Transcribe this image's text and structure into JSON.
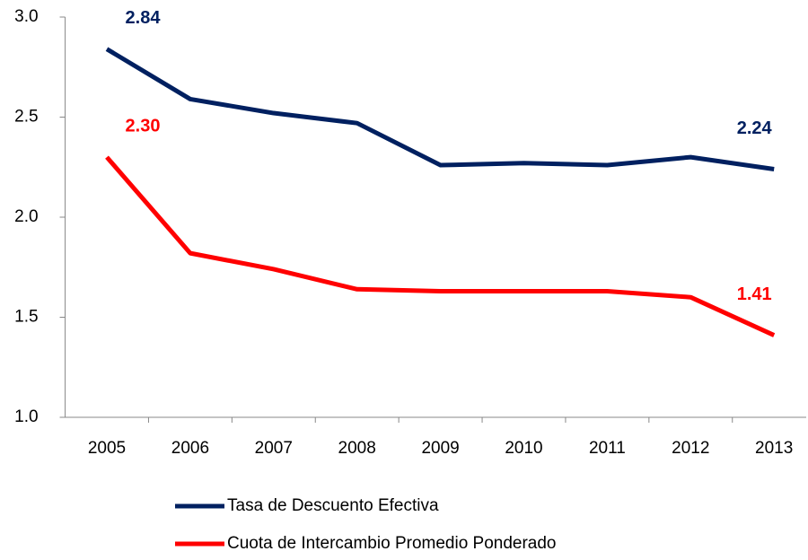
{
  "chart_data": {
    "type": "line",
    "categories": [
      "2005",
      "2006",
      "2007",
      "2008",
      "2009",
      "2010",
      "2011",
      "2012",
      "2013"
    ],
    "series": [
      {
        "name": "Tasa de Descuento Efectiva",
        "color": "#002060",
        "values": [
          2.84,
          2.59,
          2.52,
          2.47,
          2.26,
          2.27,
          2.26,
          2.3,
          2.24
        ],
        "value_labels": [
          "2.84",
          null,
          null,
          null,
          null,
          null,
          null,
          null,
          "2.24"
        ]
      },
      {
        "name": "Cuota de Intercambio Promedio Ponderado",
        "color": "#ff0000",
        "values": [
          2.3,
          1.82,
          1.74,
          1.64,
          1.63,
          1.63,
          1.63,
          1.6,
          1.41
        ],
        "value_labels": [
          "2.30",
          null,
          null,
          null,
          null,
          null,
          null,
          null,
          "1.41"
        ]
      }
    ],
    "ylim": [
      1.0,
      3.0
    ],
    "yticks": [
      {
        "value": 1.0,
        "label": "1.0"
      },
      {
        "value": 1.5,
        "label": "1.5"
      },
      {
        "value": 2.0,
        "label": "2.0"
      },
      {
        "value": 2.5,
        "label": "2.5"
      },
      {
        "value": 3.0,
        "label": "3.0"
      }
    ],
    "legend": "bottom"
  }
}
